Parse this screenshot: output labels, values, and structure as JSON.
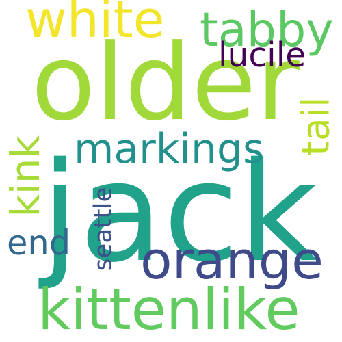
{
  "words": [
    {
      "id": "older",
      "text": "older",
      "color": "#a2d93a"
    },
    {
      "id": "jack",
      "text": "jack",
      "color": "#21a28a"
    },
    {
      "id": "kittenlike",
      "text": "kittenlike",
      "color": "#62cb5f"
    },
    {
      "id": "orange",
      "text": "orange",
      "color": "#3f4a8a"
    },
    {
      "id": "tabby",
      "text": "tabby",
      "color": "#5cc863"
    },
    {
      "id": "white",
      "text": "white",
      "color": "#f3e52a"
    },
    {
      "id": "markings",
      "text": "markings",
      "color": "#22908c"
    },
    {
      "id": "end",
      "text": "end",
      "color": "#31688e"
    },
    {
      "id": "kink",
      "text": "kink",
      "color": "#a6db3a"
    },
    {
      "id": "tail",
      "text": "tail",
      "color": "#b9de28"
    },
    {
      "id": "seattle",
      "text": "seattle",
      "color": "#3b528b"
    },
    {
      "id": "lucile",
      "text": "lucile",
      "color": "#440154"
    }
  ]
}
